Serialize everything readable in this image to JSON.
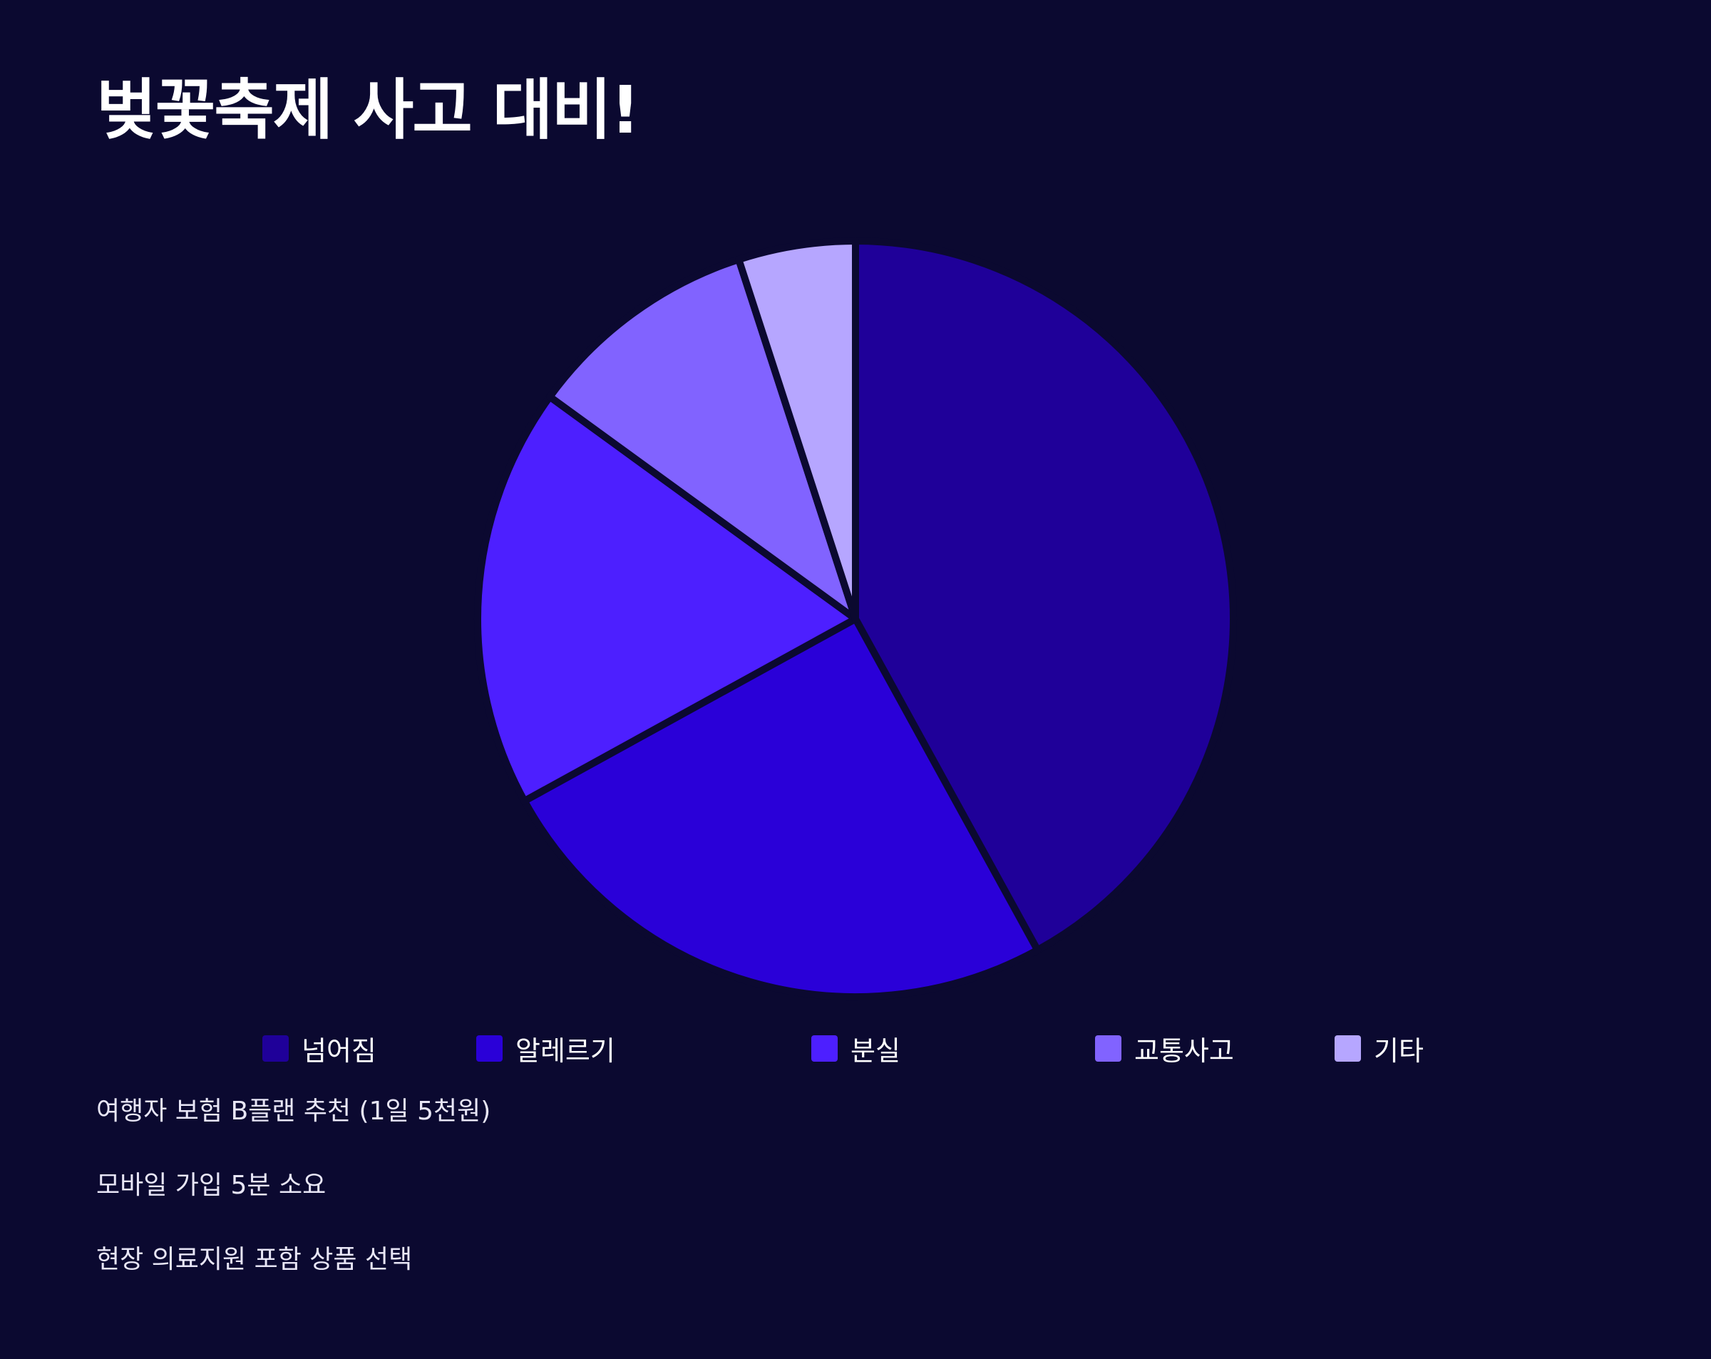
{
  "title": "벚꽃축제 사고 대비!",
  "chart_data": {
    "type": "pie",
    "title": "벚꽃축제 사고 대비!",
    "categories": [
      "넘어짐",
      "알레르기",
      "분실",
      "교통사고",
      "기타"
    ],
    "values": [
      42,
      25,
      18,
      10,
      5
    ],
    "unit": "%",
    "colors": [
      "#1f0099",
      "#2a00d8",
      "#4d1fff",
      "#8163ff",
      "#b6a6ff"
    ],
    "legend_position": "bottom",
    "start_angle_deg": 0,
    "direction": "clockwise"
  },
  "notes": [
    "여행자 보험 B플랜 추천 (1일 5천원)",
    "모바일 가입 5분 소요",
    "현장 의료지원 포함 상품 선택"
  ]
}
